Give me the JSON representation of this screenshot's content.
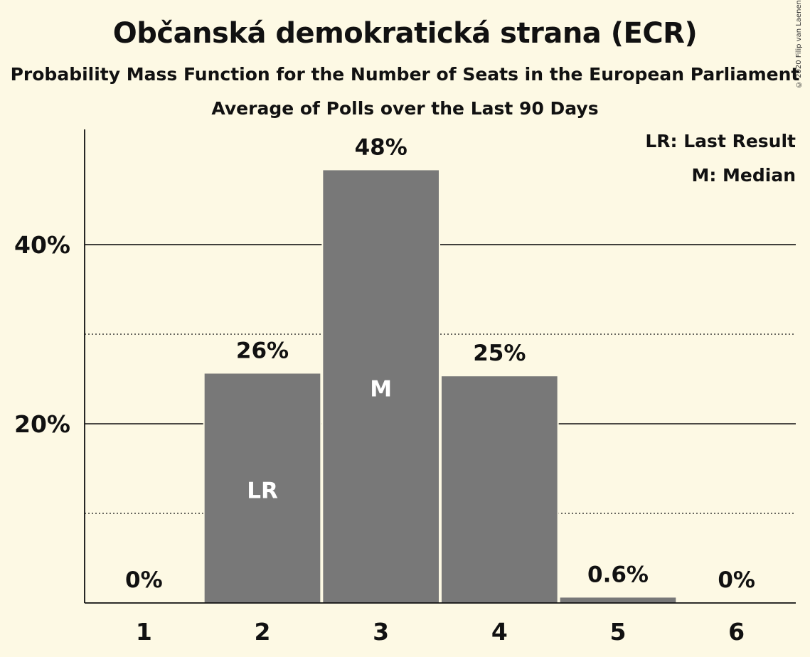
{
  "title": "Občanská demokratická strana (ECR)",
  "subtitle": "Probability Mass Function for the Number of Seats in the European Parliament",
  "subtitle2": "Average of Polls over the Last 90 Days",
  "copyright": "© 2020 Filip van Laenen",
  "legend": {
    "last_result": "LR: Last Result",
    "median": "M: Median"
  },
  "colors": {
    "background": "#fdf9e4",
    "bar": "#787878",
    "text": "#111111"
  },
  "chart_data": {
    "type": "bar",
    "categories": [
      "1",
      "2",
      "3",
      "4",
      "5",
      "6"
    ],
    "values": [
      0,
      25.6,
      48.3,
      25.3,
      0.6,
      0
    ],
    "value_labels": [
      "0%",
      "26%",
      "48%",
      "25%",
      "0.6%",
      "0%"
    ],
    "bar_markers": [
      "",
      "LR",
      "M",
      "",
      "",
      ""
    ],
    "yticks": [
      20,
      40
    ],
    "ytick_labels": [
      "20%",
      "40%"
    ],
    "minor_gridlines": [
      10,
      30
    ],
    "ylim": [
      0,
      52.7
    ],
    "xlabel": "",
    "ylabel": "",
    "grid": true
  }
}
